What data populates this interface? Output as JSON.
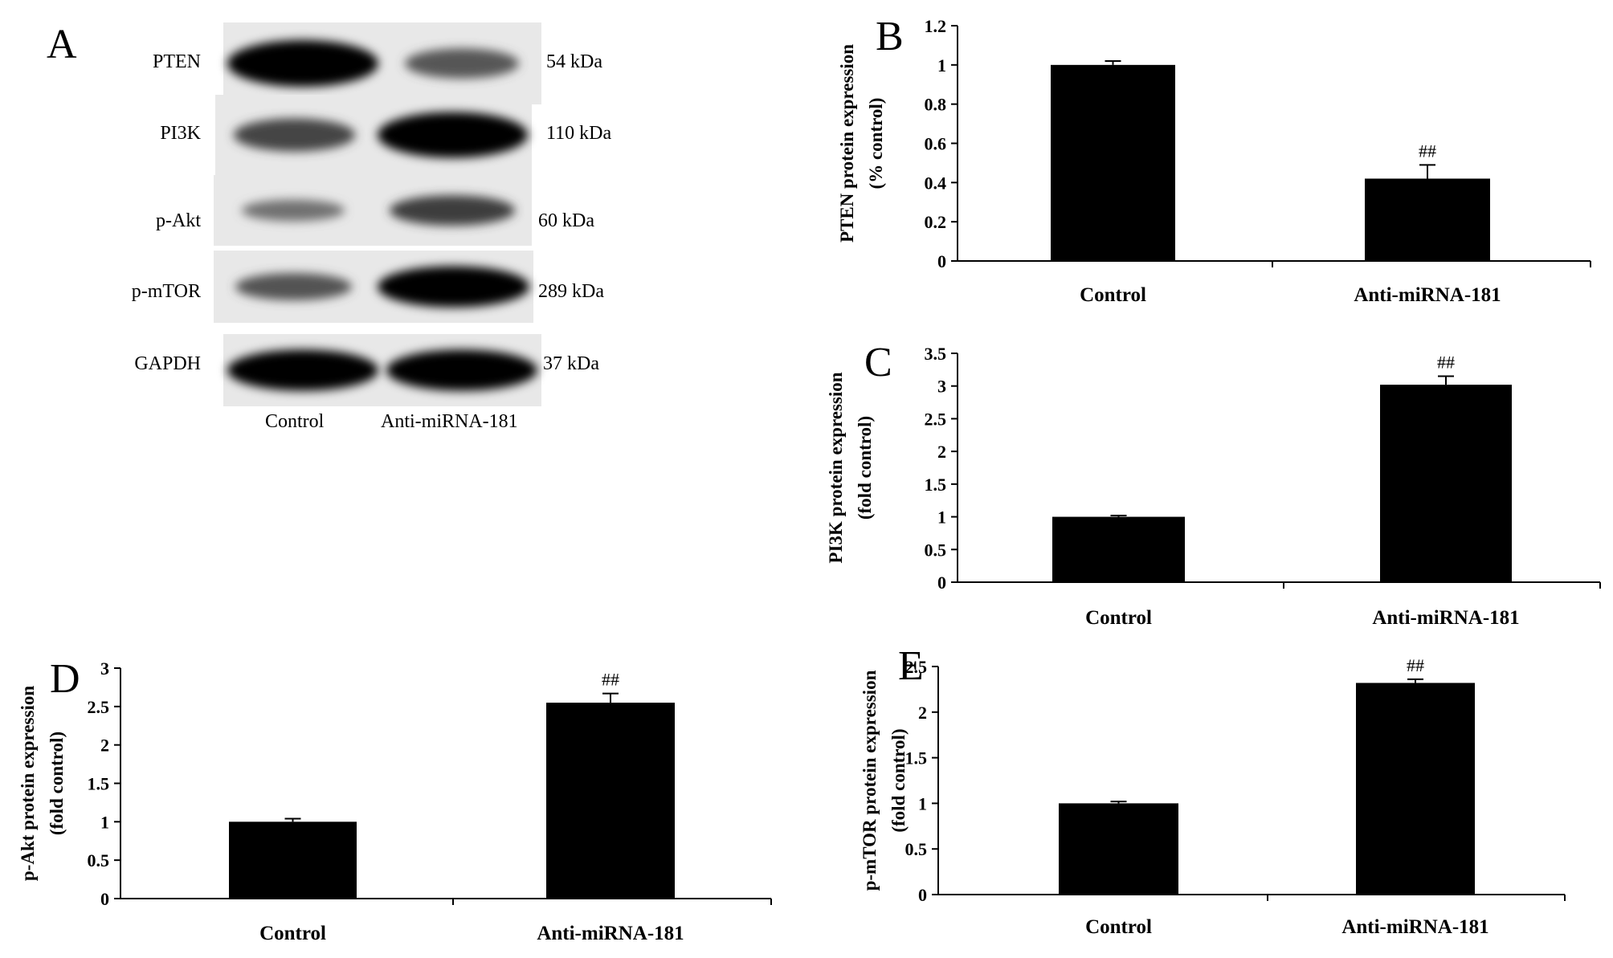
{
  "western_blot": {
    "panel_letter": "A",
    "lanes": [
      "Control",
      "Anti-miRNA-181"
    ],
    "rows": [
      {
        "protein": "PTEN",
        "size": "54 kDa",
        "intensity": [
          1.0,
          0.42
        ]
      },
      {
        "protein": "PI3K",
        "size": "110 kDa",
        "intensity": [
          0.55,
          1.0
        ]
      },
      {
        "protein": "p-Akt",
        "size": "60 kDa",
        "intensity": [
          0.25,
          0.6
        ]
      },
      {
        "protein": "p-mTOR",
        "size": "289 kDa",
        "intensity": [
          0.45,
          1.0
        ]
      },
      {
        "protein": "GAPDH",
        "size": "37 kDa",
        "intensity": [
          1.0,
          1.0
        ]
      }
    ]
  },
  "chart_data": [
    {
      "panel": "B",
      "type": "bar",
      "categories": [
        "Control",
        "Anti-miRNA-181"
      ],
      "values": [
        1.0,
        0.42
      ],
      "errors": [
        0.02,
        0.07
      ],
      "annotations": [
        "",
        "##"
      ],
      "ylabel_line1": "PTEN protein expression",
      "ylabel_line2": "(% control)",
      "ylim": [
        0,
        1.2
      ],
      "yticks": [
        "0",
        "0.2",
        "0.4",
        "0.6",
        "0.8",
        "1",
        "1.2"
      ]
    },
    {
      "panel": "C",
      "type": "bar",
      "categories": [
        "Control",
        "Anti-miRNA-181"
      ],
      "values": [
        1.0,
        3.02
      ],
      "errors": [
        0.02,
        0.13
      ],
      "annotations": [
        "",
        "##"
      ],
      "ylabel_line1": "PI3K protein expression",
      "ylabel_line2": "(fold control)",
      "ylim": [
        0,
        3.5
      ],
      "yticks": [
        "0",
        "0.5",
        "1",
        "1.5",
        "2",
        "2.5",
        "3",
        "3.5"
      ]
    },
    {
      "panel": "D",
      "type": "bar",
      "categories": [
        "Control",
        "Anti-miRNA-181"
      ],
      "values": [
        1.0,
        2.55
      ],
      "errors": [
        0.04,
        0.12
      ],
      "annotations": [
        "",
        "##"
      ],
      "ylabel_line1": "p-Akt protein expression",
      "ylabel_line2": "(fold control)",
      "ylim": [
        0,
        3
      ],
      "yticks": [
        "0",
        "0.5",
        "1",
        "1.5",
        "2",
        "2.5",
        "3"
      ]
    },
    {
      "panel": "E",
      "type": "bar",
      "categories": [
        "Control",
        "Anti-miRNA-181"
      ],
      "values": [
        1.0,
        2.32
      ],
      "errors": [
        0.02,
        0.04
      ],
      "annotations": [
        "",
        "##"
      ],
      "ylabel_line1": "p-mTOR protein expression",
      "ylabel_line2": "(fold control)",
      "ylim": [
        0,
        2.5
      ],
      "yticks": [
        "0",
        "0.5",
        "1",
        "1.5",
        "2",
        "2.5"
      ]
    }
  ]
}
